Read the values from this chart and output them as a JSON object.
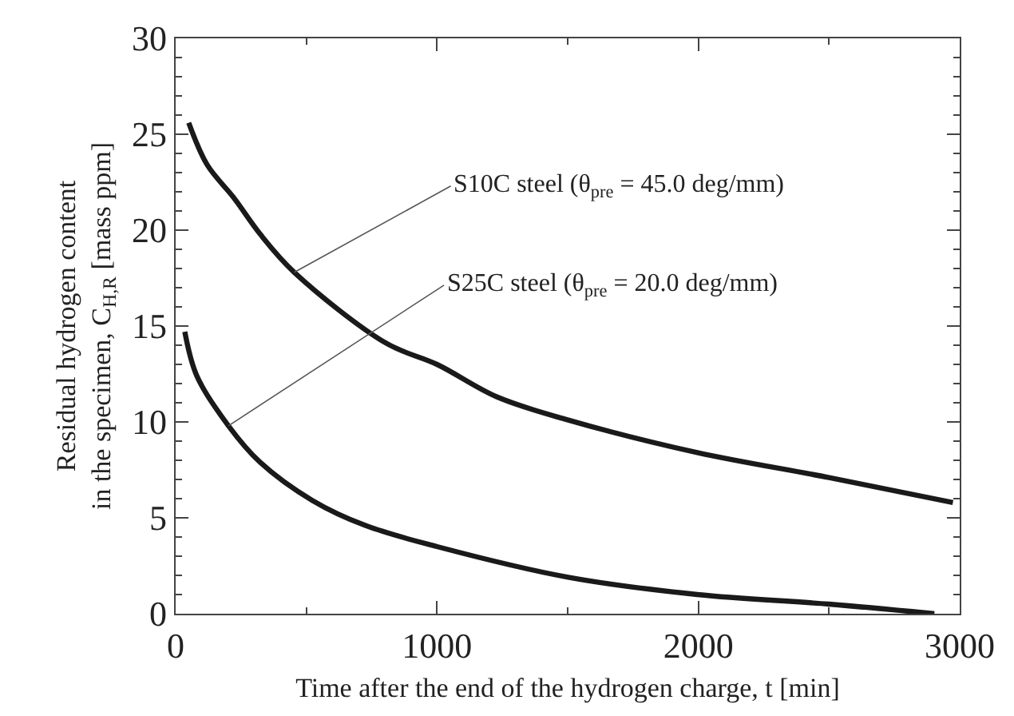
{
  "chart_data": {
    "type": "line",
    "xlabel": "Time after the end of the hydrogen charge, t [min]",
    "ylabel": "Residual hydrogen content\nin the specimen, C$_{H,R}$ [mass ppm]",
    "xlim": [
      0,
      3000
    ],
    "xticks": [
      0,
      1000,
      2000,
      3000
    ],
    "ylim": [
      0,
      30
    ],
    "yticks": [
      0,
      5,
      10,
      15,
      20,
      25,
      30
    ],
    "grid": false,
    "marker": "none",
    "line_style": "solid",
    "series": [
      {
        "color": "#1a1a1a",
        "x": [
          50,
          121,
          222,
          323,
          454,
          806,
          1000,
          1230,
          1502,
          1996,
          2500,
          2974
        ],
        "values": [
          25.6,
          23.4,
          21.7,
          19.8,
          17.8,
          14.1,
          13.0,
          11.3,
          10.1,
          8.4,
          7.1,
          5.8
        ]
      },
      {
        "color": "#1a1a1a",
        "x": [
          35,
          81,
          202,
          323,
          524,
          726,
          1000,
          1502,
          1996,
          2500,
          2903
        ],
        "values": [
          14.7,
          12.4,
          9.8,
          7.9,
          5.9,
          4.6,
          3.5,
          1.9,
          1.0,
          0.5,
          0
        ]
      }
    ],
    "annotations": [
      {
        "text": "S10C steel (θ$_{pre}$ = 45.0 deg/mm)",
        "x": 454,
        "y": 17.8
      },
      {
        "text": "S25C steel (θ$_{pre}$ = 20.0 deg/mm)",
        "x": 202,
        "y": 9.8
      }
    ]
  }
}
